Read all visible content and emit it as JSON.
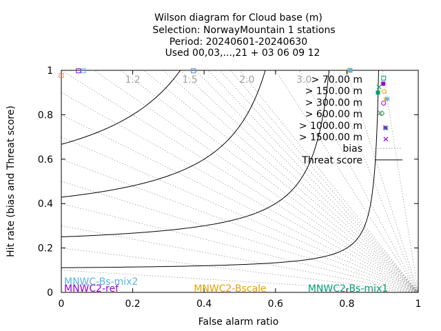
{
  "chart_data": {
    "type": "scatter",
    "title": [
      "Wilson diagram  for Cloud base (m)",
      "Selection: NorwayMountain      1 stations",
      "Period: 20240601-20240630",
      "Used 00,03,...,21 + 03 06 09 12"
    ],
    "xlabel": "False alarm ratio",
    "ylabel": "Hit rate (bias and Threat score)",
    "xlim": [
      0,
      1
    ],
    "ylim": [
      0,
      1
    ],
    "xticks": [
      "0",
      "0.2",
      "0.4",
      "0.6",
      "0.8",
      "1"
    ],
    "yticks": [
      "0",
      "0.2",
      "0.4",
      "0.6",
      "0.8",
      "1"
    ],
    "xtick_values": [
      0,
      0.2,
      0.4,
      0.6,
      0.8,
      1
    ],
    "ytick_values": [
      0,
      0.2,
      0.4,
      0.6,
      0.8,
      1
    ],
    "bias_values": [
      0.1,
      0.2,
      0.3,
      0.4,
      0.5,
      0.6,
      0.7,
      0.8,
      0.9,
      1.0,
      1.1,
      1.2,
      1.3,
      1.4,
      1.5,
      1.6,
      1.7,
      1.8,
      1.9,
      2.0,
      2.5,
      3.0,
      4.0,
      5.0,
      10.0
    ],
    "bias_labels": [
      {
        "text": "1.2",
        "value": 1.2
      },
      {
        "text": "1.5",
        "value": 1.5
      },
      {
        "text": "2.0",
        "value": 2.0
      },
      {
        "text": "3.0",
        "value": 3.0
      }
    ],
    "threat_score_values": [
      0.1,
      0.2,
      0.3,
      0.4,
      0.5,
      0.6,
      0.7,
      0.8,
      0.9
    ],
    "legend": {
      "placement": "top-right",
      "thresholds": [
        "> 70.00 m",
        "> 150.00 m",
        "> 300.00 m",
        "> 600.00 m",
        "> 1000.00 m",
        "> 1500.00 m"
      ],
      "bias_label": "bias",
      "threat_label": "Threat score"
    },
    "series": [
      {
        "name": "MNWC2-Bs-mix1",
        "color": "#009e73",
        "points": [
          {
            "x": 0.903,
            "y": 0.965
          },
          {
            "x": 0.887,
            "y": 0.9
          },
          {
            "x": 0.898,
            "y": 0.806
          },
          {
            "x": 0.91,
            "y": 0.74
          },
          {
            "x": 0.89,
            "y": 0.925
          }
        ]
      },
      {
        "name": "MNWC2-ref",
        "color": "#9400d3",
        "points": [
          {
            "x": 0.902,
            "y": 0.94
          },
          {
            "x": 0.903,
            "y": 0.852
          },
          {
            "x": 0.907,
            "y": 0.742
          },
          {
            "x": 0.909,
            "y": 0.69
          },
          {
            "x": 0.048,
            "y": 0.998
          },
          {
            "x": 0.37,
            "y": 0.998
          }
        ]
      },
      {
        "name": "MNWC2-Bscale",
        "color": "#e69f00",
        "points": [
          {
            "x": 0.904,
            "y": 0.905
          },
          {
            "x": 0.909,
            "y": 0.87
          },
          {
            "x": 0.893,
            "y": 0.806
          },
          {
            "x": 0.0,
            "y": 0.977
          },
          {
            "x": 0.808,
            "y": 1.0
          }
        ]
      },
      {
        "name": "MNWC-Bs-mix2",
        "color": "#56b4e9",
        "points": [
          {
            "x": 0.914,
            "y": 0.872
          },
          {
            "x": 0.893,
            "y": 0.81
          },
          {
            "x": 0.062,
            "y": 0.998
          },
          {
            "x": 0.37,
            "y": 0.998
          },
          {
            "x": 0.81,
            "y": 1.0
          }
        ]
      }
    ]
  }
}
